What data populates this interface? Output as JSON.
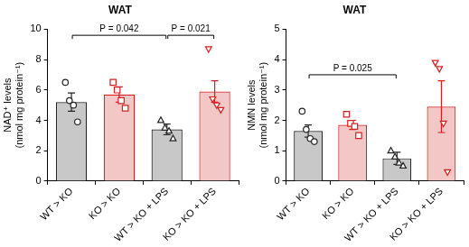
{
  "chart_data": [
    {
      "type": "bar",
      "title": "WAT",
      "y_label": [
        "NAD⁺ levels",
        "(nmol mg protein⁻¹)"
      ],
      "categories": [
        "WT > KO",
        "KO > KO",
        "WT > KO + LPS",
        "KO > KO + LPS"
      ],
      "values": [
        5.2,
        5.7,
        3.4,
        5.9
      ],
      "errors": [
        0.6,
        0.5,
        0.35,
        0.7
      ],
      "points": [
        {
          "values": [
            6.5,
            5.3,
            5.0,
            3.9
          ],
          "marker": "circle"
        },
        {
          "values": [
            6.5,
            6.0,
            5.3,
            4.8
          ],
          "marker": "square"
        },
        {
          "values": [
            4.0,
            3.5,
            3.3,
            2.8
          ],
          "marker": "triangle"
        },
        {
          "values": [
            8.7,
            5.4,
            5.0,
            4.7
          ],
          "marker": "triangle_down"
        }
      ],
      "colors": [
        "#c8c8c8",
        "#f4c7c7",
        "#c8c8c8",
        "#f4c7c7"
      ],
      "ylim": [
        0,
        10
      ],
      "yticks": [
        0,
        2,
        4,
        6,
        8,
        10
      ],
      "comparisons": [
        {
          "from": 0,
          "to": 2,
          "label": "P = 0.042"
        },
        {
          "from": 2,
          "to": 3,
          "label": "P = 0.021"
        }
      ],
      "grid": false
    },
    {
      "type": "bar",
      "title": "WAT",
      "y_label": [
        "NMN levels",
        "(nmol mg protein⁻¹)"
      ],
      "categories": [
        "WT > KO",
        "KO > KO",
        "WT > KO + LPS",
        "KO > KO + LPS"
      ],
      "values": [
        1.65,
        1.85,
        0.75,
        2.45
      ],
      "errors": [
        0.2,
        0.15,
        0.2,
        0.85
      ],
      "points": [
        {
          "values": [
            2.3,
            1.7,
            1.4,
            1.3
          ],
          "marker": "circle"
        },
        {
          "values": [
            2.2,
            1.9,
            1.8,
            1.5
          ],
          "marker": "square"
        },
        {
          "values": [
            1.0,
            0.8,
            0.6,
            0.5
          ],
          "marker": "triangle"
        },
        {
          "values": [
            3.9,
            3.7,
            1.9,
            0.3
          ],
          "marker": "triangle_down"
        }
      ],
      "colors": [
        "#c8c8c8",
        "#f4c7c7",
        "#c8c8c8",
        "#f4c7c7"
      ],
      "ylim": [
        0,
        5
      ],
      "yticks": [
        0,
        1,
        2,
        3,
        4,
        5
      ],
      "comparisons": [
        {
          "from": 0,
          "to": 2,
          "label": "P = 0.025"
        }
      ],
      "grid": false
    }
  ]
}
